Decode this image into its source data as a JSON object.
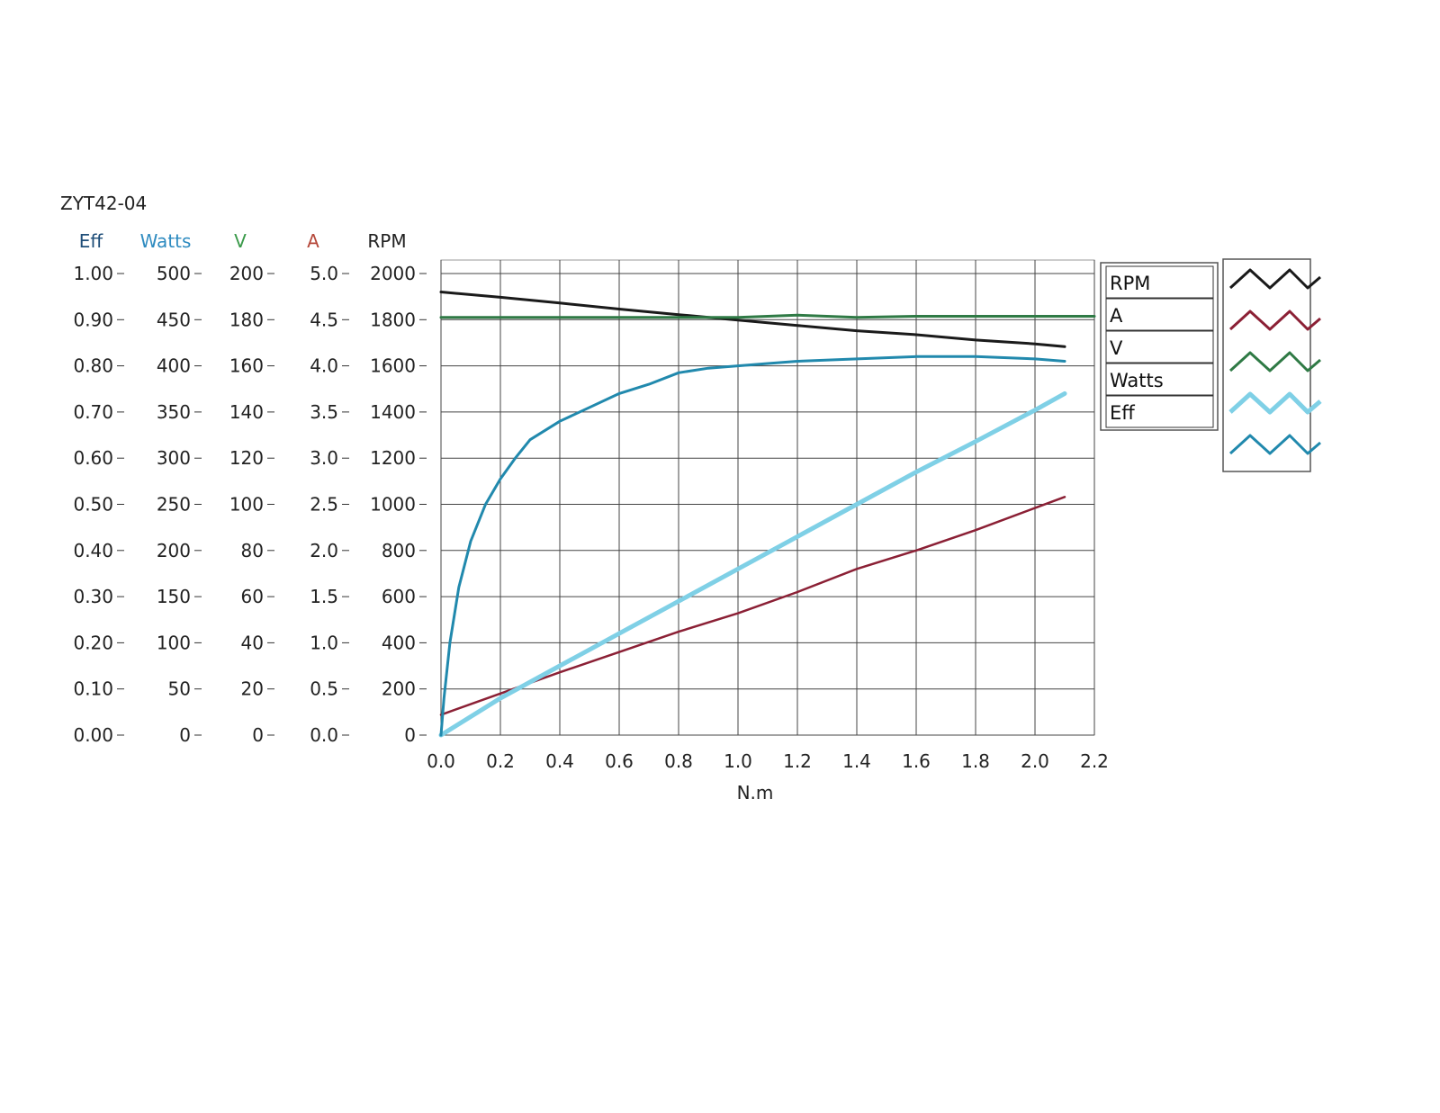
{
  "chart_data": {
    "type": "line",
    "title": "ZYT42-04",
    "xlabel": "N.m",
    "xlim": [
      0,
      2.2
    ],
    "x_ticks": [
      "0.0",
      "0.2",
      "0.4",
      "0.6",
      "0.8",
      "1.0",
      "1.2",
      "1.4",
      "1.6",
      "1.8",
      "2.0",
      "2.2"
    ],
    "grid": true,
    "legend_position": "right",
    "axes": [
      {
        "key": "eff",
        "label": "Eff",
        "color": "#1f4e79",
        "range": [
          0,
          1
        ],
        "ticks": [
          "1.00",
          "0.90",
          "0.80",
          "0.70",
          "0.60",
          "0.50",
          "0.40",
          "0.30",
          "0.20",
          "0.10",
          "0.00"
        ]
      },
      {
        "key": "watts",
        "label": "Watts",
        "color": "#2e8bc0",
        "range": [
          0,
          500
        ],
        "ticks": [
          "500",
          "450",
          "400",
          "350",
          "300",
          "250",
          "200",
          "150",
          "100",
          "50",
          "0"
        ]
      },
      {
        "key": "v",
        "label": "V",
        "color": "#3a9a4a",
        "range": [
          0,
          200
        ],
        "ticks": [
          "200",
          "180",
          "160",
          "140",
          "120",
          "100",
          "80",
          "60",
          "40",
          "20",
          "0"
        ]
      },
      {
        "key": "a",
        "label": "A",
        "color": "#b5483a",
        "range": [
          0,
          5
        ],
        "ticks": [
          "5.0",
          "4.5",
          "4.0",
          "3.5",
          "3.0",
          "2.5",
          "2.0",
          "1.5",
          "1.0",
          "0.5",
          "0.0"
        ]
      },
      {
        "key": "rpm",
        "label": "RPM",
        "color": "#222222",
        "range": [
          0,
          2000
        ],
        "ticks": [
          "2000",
          "1800",
          "1600",
          "1400",
          "1200",
          "1000",
          "800",
          "600",
          "400",
          "200",
          "0"
        ]
      }
    ],
    "series": [
      {
        "name": "RPM",
        "axis": "rpm",
        "color": "#1a1a1a",
        "width": 3,
        "x": [
          0,
          0.2,
          0.4,
          0.6,
          0.8,
          1.0,
          1.2,
          1.4,
          1.6,
          1.8,
          2.0,
          2.1
        ],
        "y": [
          1920,
          1897,
          1872,
          1846,
          1822,
          1798,
          1775,
          1752,
          1735,
          1712,
          1695,
          1683
        ]
      },
      {
        "name": "A",
        "axis": "a",
        "color": "#8b2035",
        "width": 2.5,
        "x": [
          0,
          0.2,
          0.4,
          0.6,
          0.8,
          1.0,
          1.2,
          1.4,
          1.6,
          1.8,
          2.0,
          2.1
        ],
        "y": [
          0.22,
          0.45,
          0.68,
          0.9,
          1.12,
          1.32,
          1.55,
          1.8,
          2.0,
          2.22,
          2.46,
          2.58
        ]
      },
      {
        "name": "V",
        "axis": "v",
        "color": "#2f7a45",
        "width": 3,
        "x": [
          0,
          0.2,
          0.4,
          0.6,
          0.8,
          1.0,
          1.2,
          1.4,
          1.6,
          1.8,
          2.0,
          2.2
        ],
        "y": [
          181,
          181,
          181,
          181,
          181,
          181,
          182,
          181,
          181.5,
          181.5,
          181.5,
          181.5
        ]
      },
      {
        "name": "Watts",
        "axis": "watts",
        "color": "#7fd0e6",
        "width": 5,
        "x": [
          0,
          0.1,
          0.2,
          0.4,
          0.6,
          0.8,
          1.0,
          1.2,
          1.4,
          1.6,
          1.8,
          2.0,
          2.1
        ],
        "y": [
          0,
          20,
          40,
          75,
          110,
          145,
          180,
          215,
          250,
          285,
          318,
          352,
          370
        ]
      },
      {
        "name": "Eff",
        "axis": "eff",
        "color": "#2189ad",
        "width": 3,
        "x": [
          0,
          0.01,
          0.03,
          0.06,
          0.1,
          0.15,
          0.2,
          0.25,
          0.3,
          0.4,
          0.5,
          0.6,
          0.7,
          0.8,
          0.9,
          1.0,
          1.1,
          1.2,
          1.4,
          1.6,
          1.8,
          2.0,
          2.1
        ],
        "y": [
          0,
          0.08,
          0.2,
          0.32,
          0.42,
          0.5,
          0.555,
          0.6,
          0.64,
          0.68,
          0.71,
          0.74,
          0.76,
          0.785,
          0.795,
          0.8,
          0.805,
          0.81,
          0.815,
          0.82,
          0.82,
          0.815,
          0.81
        ]
      }
    ]
  }
}
